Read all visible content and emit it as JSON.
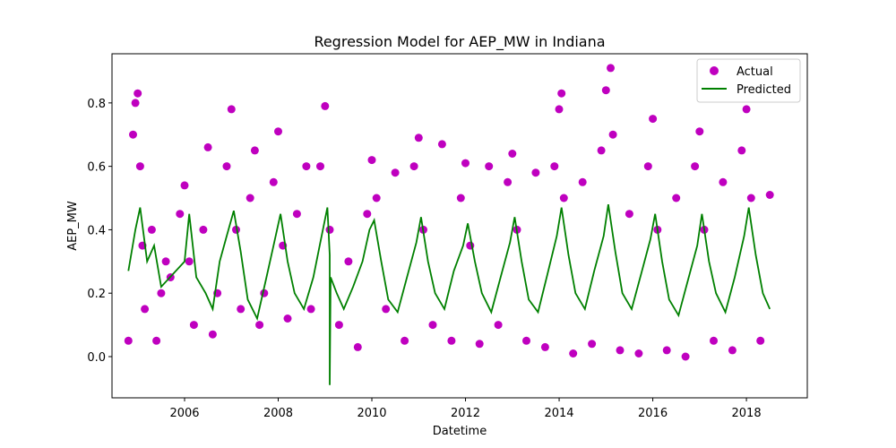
{
  "chart_data": {
    "type": "scatter",
    "title": "Regression Model for AEP_MW in Indiana",
    "xlabel": "Datetime",
    "ylabel": "AEP_MW",
    "xlim": [
      2004.45,
      2019.3
    ],
    "ylim": [
      -0.13,
      0.955
    ],
    "x_ticks": [
      2006,
      2008,
      2010,
      2012,
      2014,
      2016,
      2018
    ],
    "x_tick_labels": [
      "2006",
      "2008",
      "2010",
      "2012",
      "2014",
      "2016",
      "2018"
    ],
    "y_ticks": [
      0.0,
      0.2,
      0.4,
      0.6,
      0.8
    ],
    "y_tick_labels": [
      "0.0",
      "0.2",
      "0.4",
      "0.6",
      "0.8"
    ],
    "grid": false,
    "legend_position": "top-right",
    "series": [
      {
        "name": "Actual",
        "kind": "scatter",
        "color": "#bf00bf",
        "x": [
          2004.8,
          2004.9,
          2004.95,
          2005.0,
          2005.05,
          2005.1,
          2005.15,
          2005.3,
          2005.4,
          2005.5,
          2005.6,
          2005.7,
          2005.9,
          2006.0,
          2006.1,
          2006.2,
          2006.4,
          2006.5,
          2006.6,
          2006.7,
          2006.9,
          2007.0,
          2007.1,
          2007.2,
          2007.4,
          2007.5,
          2007.6,
          2007.7,
          2007.9,
          2008.0,
          2008.1,
          2008.2,
          2008.4,
          2008.6,
          2008.7,
          2008.9,
          2009.0,
          2009.1,
          2009.3,
          2009.5,
          2009.7,
          2009.9,
          2010.0,
          2010.1,
          2010.3,
          2010.5,
          2010.7,
          2010.9,
          2011.0,
          2011.1,
          2011.3,
          2011.5,
          2011.7,
          2011.9,
          2012.0,
          2012.1,
          2012.3,
          2012.5,
          2012.7,
          2012.9,
          2013.0,
          2013.1,
          2013.3,
          2013.5,
          2013.7,
          2013.9,
          2014.0,
          2014.05,
          2014.1,
          2014.3,
          2014.5,
          2014.7,
          2014.9,
          2015.0,
          2015.1,
          2015.15,
          2015.3,
          2015.5,
          2015.7,
          2015.9,
          2016.0,
          2016.1,
          2016.3,
          2016.5,
          2016.7,
          2016.9,
          2017.0,
          2017.1,
          2017.3,
          2017.5,
          2017.7,
          2017.9,
          2018.0,
          2018.1,
          2018.3,
          2018.5
        ],
        "y": [
          0.05,
          0.7,
          0.8,
          0.83,
          0.6,
          0.35,
          0.15,
          0.4,
          0.05,
          0.2,
          0.3,
          0.25,
          0.45,
          0.54,
          0.3,
          0.1,
          0.4,
          0.66,
          0.07,
          0.2,
          0.6,
          0.78,
          0.4,
          0.15,
          0.5,
          0.65,
          0.1,
          0.2,
          0.55,
          0.71,
          0.35,
          0.12,
          0.45,
          0.6,
          0.15,
          0.6,
          0.79,
          0.4,
          0.1,
          0.3,
          0.03,
          0.45,
          0.62,
          0.5,
          0.15,
          0.58,
          0.05,
          0.6,
          0.69,
          0.4,
          0.1,
          0.67,
          0.05,
          0.5,
          0.61,
          0.35,
          0.04,
          0.6,
          0.1,
          0.55,
          0.64,
          0.4,
          0.05,
          0.58,
          0.03,
          0.6,
          0.78,
          0.83,
          0.5,
          0.01,
          0.55,
          0.04,
          0.65,
          0.84,
          0.91,
          0.7,
          0.02,
          0.45,
          0.01,
          0.6,
          0.75,
          0.4,
          0.02,
          0.5,
          0.0,
          0.6,
          0.71,
          0.4,
          0.05,
          0.55,
          0.02,
          0.65,
          0.78,
          0.5,
          0.05,
          0.51
        ]
      },
      {
        "name": "Predicted",
        "kind": "line",
        "color": "#008000",
        "x": [
          2004.8,
          2004.95,
          2005.05,
          2005.2,
          2005.35,
          2005.5,
          2006.0,
          2006.1,
          2006.25,
          2006.45,
          2006.6,
          2006.75,
          2006.9,
          2007.05,
          2007.2,
          2007.35,
          2007.55,
          2007.75,
          2007.9,
          2008.05,
          2008.2,
          2008.35,
          2008.55,
          2008.75,
          2008.9,
          2009.05,
          2009.1,
          2009.1,
          2009.12,
          2009.25,
          2009.4,
          2009.6,
          2009.8,
          2009.95,
          2010.05,
          2010.2,
          2010.35,
          2010.55,
          2010.75,
          2010.95,
          2011.05,
          2011.2,
          2011.35,
          2011.55,
          2011.75,
          2011.95,
          2012.05,
          2012.2,
          2012.35,
          2012.55,
          2012.75,
          2012.95,
          2013.05,
          2013.2,
          2013.35,
          2013.55,
          2013.75,
          2013.95,
          2014.05,
          2014.2,
          2014.35,
          2014.55,
          2014.75,
          2014.95,
          2015.05,
          2015.2,
          2015.35,
          2015.55,
          2015.75,
          2015.95,
          2016.05,
          2016.2,
          2016.35,
          2016.55,
          2016.75,
          2016.95,
          2017.05,
          2017.2,
          2017.35,
          2017.55,
          2017.75,
          2017.95,
          2018.05,
          2018.2,
          2018.35,
          2018.5
        ],
        "y": [
          0.27,
          0.4,
          0.47,
          0.3,
          0.35,
          0.22,
          0.3,
          0.45,
          0.25,
          0.2,
          0.15,
          0.3,
          0.38,
          0.46,
          0.33,
          0.18,
          0.12,
          0.25,
          0.35,
          0.45,
          0.3,
          0.2,
          0.15,
          0.25,
          0.36,
          0.47,
          0.32,
          -0.09,
          0.25,
          0.2,
          0.15,
          0.22,
          0.3,
          0.4,
          0.43,
          0.3,
          0.18,
          0.14,
          0.25,
          0.36,
          0.44,
          0.3,
          0.2,
          0.15,
          0.27,
          0.35,
          0.42,
          0.3,
          0.2,
          0.14,
          0.25,
          0.36,
          0.44,
          0.3,
          0.18,
          0.14,
          0.26,
          0.38,
          0.47,
          0.32,
          0.2,
          0.15,
          0.27,
          0.38,
          0.48,
          0.33,
          0.2,
          0.15,
          0.26,
          0.37,
          0.45,
          0.3,
          0.18,
          0.13,
          0.24,
          0.35,
          0.45,
          0.3,
          0.2,
          0.14,
          0.25,
          0.38,
          0.47,
          0.32,
          0.2,
          0.15
        ]
      }
    ]
  }
}
